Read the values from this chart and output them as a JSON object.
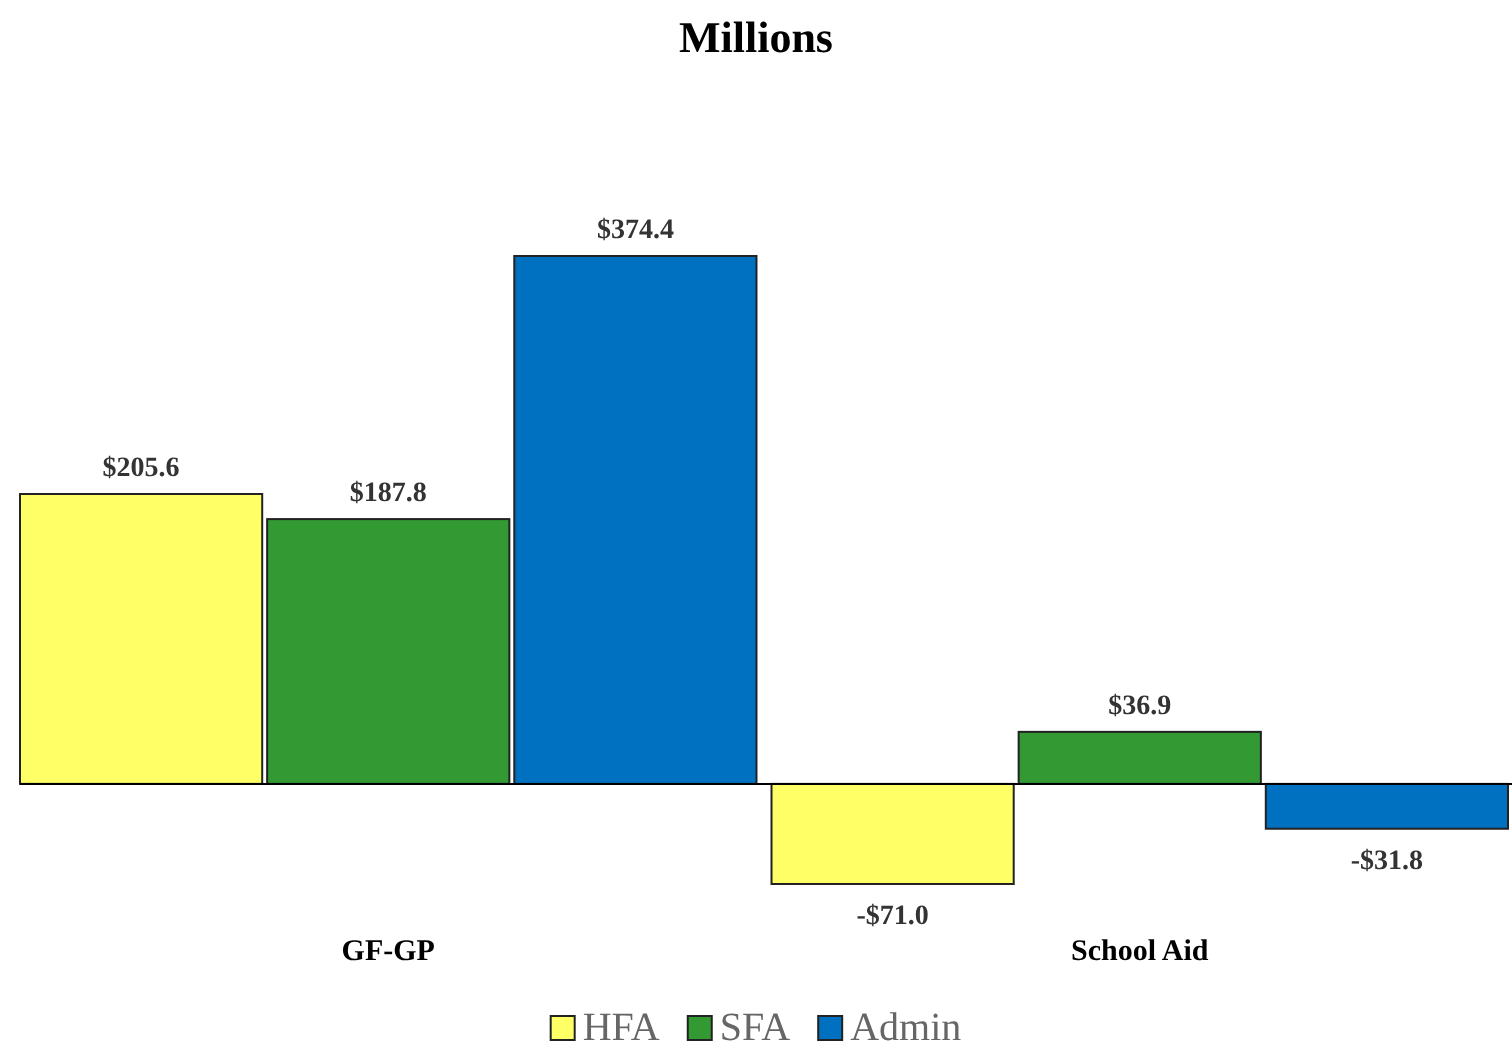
{
  "chart_data": {
    "type": "bar",
    "title": "Millions",
    "categories": [
      "GF-GP",
      "School Aid"
    ],
    "series": [
      {
        "name": "HFA",
        "color": "#ffff66",
        "values": [
          205.6,
          -71.0
        ],
        "value_labels": [
          "$205.6",
          "-$71.0"
        ]
      },
      {
        "name": "SFA",
        "color": "#339933",
        "values": [
          187.8,
          36.9
        ],
        "value_labels": [
          "$187.8",
          "$36.9"
        ]
      },
      {
        "name": "Admin",
        "color": "#0070c0",
        "values": [
          374.4,
          -31.8
        ],
        "value_labels": [
          "$374.4",
          "-$31.8"
        ]
      }
    ],
    "legend": "bottom"
  }
}
